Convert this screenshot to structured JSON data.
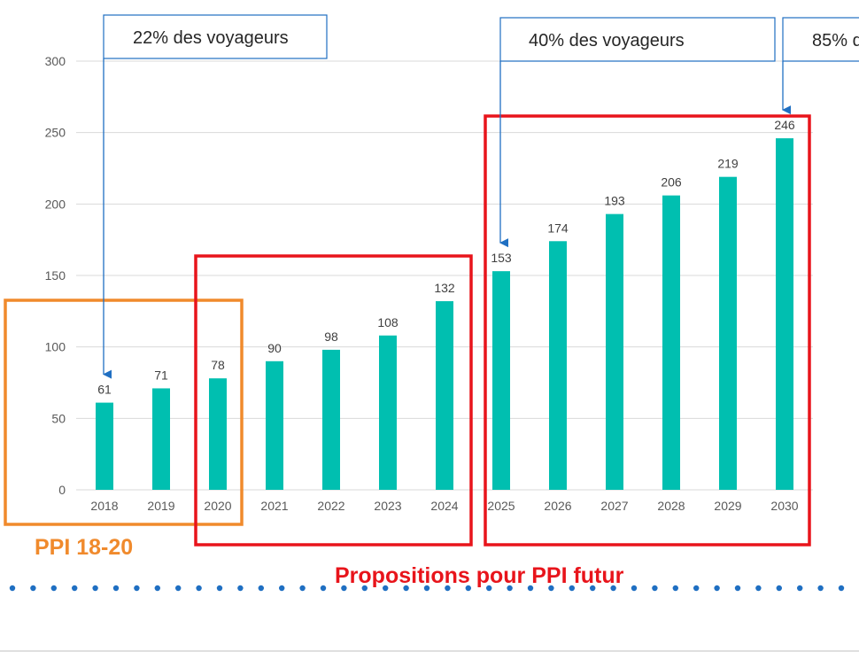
{
  "chart_data": {
    "type": "bar",
    "categories": [
      "2018",
      "2019",
      "2020",
      "2021",
      "2022",
      "2023",
      "2024",
      "2025",
      "2026",
      "2027",
      "2028",
      "2029",
      "2030"
    ],
    "values": [
      61,
      71,
      78,
      90,
      98,
      108,
      132,
      153,
      174,
      193,
      206,
      219,
      246
    ],
    "ylim": [
      0,
      300
    ],
    "yticks": [
      0,
      50,
      100,
      150,
      200,
      250,
      300
    ],
    "grid": true,
    "bar_color": "#00BFB0"
  },
  "annotations": {
    "callouts": [
      {
        "text": "22% des voyageurs",
        "target": "2018"
      },
      {
        "text": "40% des voyageurs",
        "target": "2025"
      },
      {
        "text": "85% d",
        "target": "2030"
      }
    ],
    "groups": [
      {
        "label": "PPI 18-20",
        "from": "2018",
        "to": "2020",
        "color": "#F08A2C"
      },
      {
        "label": "",
        "from": "2020",
        "to": "2024",
        "color": "#E8141B"
      },
      {
        "label": "",
        "from": "2025",
        "to": "2030",
        "color": "#E8141B"
      }
    ],
    "caption_future": "Propositions pour PPI futur",
    "caption_future_color": "#E8141B",
    "arrow_color": "#1F6FC2",
    "dots_color": "#1F6FC2"
  }
}
